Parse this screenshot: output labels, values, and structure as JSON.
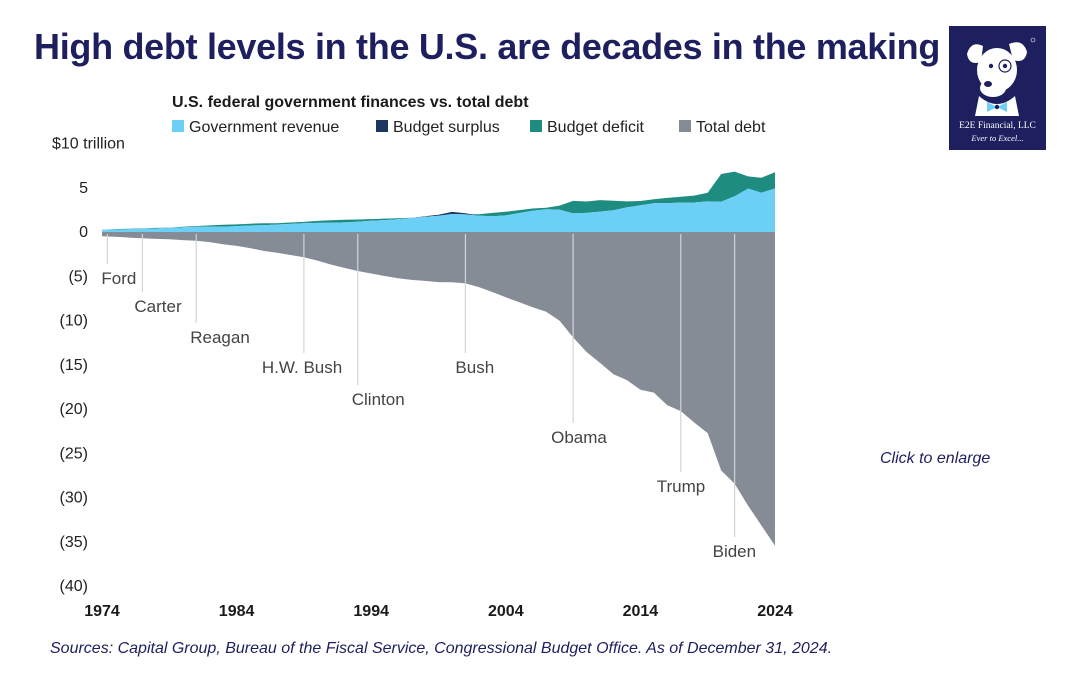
{
  "page": {
    "title": "High debt levels in the U.S. are decades in the making",
    "click_label": "Click to enlarge",
    "sources": "Sources: Capital Group, Bureau of the Fiscal Service, Congressional Budget Office. As of December 31, 2024."
  },
  "logo": {
    "brand": "E2E Financial, LLC",
    "tagline": "Ever to Excel..."
  },
  "colors": {
    "title": "#1d1f5e",
    "revenue": "#6ccff6",
    "surplus": "#1b3760",
    "deficit": "#1e8c80",
    "debt": "#858c95",
    "axis_text": "#222222"
  },
  "chart_data": {
    "type": "area",
    "title": "U.S. federal government finances vs. total debt",
    "y_unit_label": "$10 trillion",
    "ylim": [
      -40,
      10
    ],
    "xlim": [
      1974,
      2024
    ],
    "y_ticks": [
      10,
      5,
      0,
      -5,
      -10,
      -15,
      -20,
      -25,
      -30,
      -35,
      -40
    ],
    "y_tick_labels": [
      "$10 trillion",
      "5",
      "0",
      "(5)",
      "(10)",
      "(15)",
      "(20)",
      "(25)",
      "(30)",
      "(35)",
      "(40)"
    ],
    "x_ticks": [
      1974,
      1984,
      1994,
      2004,
      2014,
      2024
    ],
    "x_tick_labels": [
      "1974",
      "1984",
      "1994",
      "2004",
      "2014",
      "2024"
    ],
    "legend": [
      "Government revenue",
      "Budget surplus",
      "Budget deficit",
      "Total debt"
    ],
    "x": [
      1974,
      1975,
      1976,
      1977,
      1978,
      1979,
      1980,
      1981,
      1982,
      1983,
      1984,
      1985,
      1986,
      1987,
      1988,
      1989,
      1990,
      1991,
      1992,
      1993,
      1994,
      1995,
      1996,
      1997,
      1998,
      1999,
      2000,
      2001,
      2002,
      2003,
      2004,
      2005,
      2006,
      2007,
      2008,
      2009,
      2010,
      2011,
      2012,
      2013,
      2014,
      2015,
      2016,
      2017,
      2018,
      2019,
      2020,
      2021,
      2022,
      2023,
      2024
    ],
    "series": [
      {
        "name": "Government revenue",
        "values": [
          0.26,
          0.28,
          0.3,
          0.36,
          0.4,
          0.46,
          0.52,
          0.6,
          0.62,
          0.6,
          0.67,
          0.73,
          0.77,
          0.85,
          0.91,
          0.99,
          1.03,
          1.05,
          1.09,
          1.15,
          1.26,
          1.35,
          1.45,
          1.58,
          1.72,
          1.83,
          2.03,
          1.99,
          1.85,
          1.78,
          1.88,
          2.15,
          2.41,
          2.57,
          2.52,
          2.1,
          2.16,
          2.3,
          2.45,
          2.78,
          3.02,
          3.25,
          3.27,
          3.32,
          3.33,
          3.46,
          3.42,
          4.05,
          4.9,
          4.44,
          4.92
        ]
      },
      {
        "name": "Budget surplus",
        "values": [
          0,
          0,
          0,
          0,
          0,
          0,
          0,
          0,
          0,
          0,
          0,
          0,
          0,
          0,
          0,
          0,
          0,
          0,
          0,
          0,
          0,
          0,
          0,
          0,
          0.07,
          0.13,
          0.24,
          0.13,
          0,
          0,
          0,
          0,
          0,
          0,
          0,
          0,
          0,
          0,
          0,
          0,
          0,
          0,
          0,
          0,
          0,
          0,
          0,
          0,
          0,
          0,
          0
        ]
      },
      {
        "name": "Budget deficit",
        "values": [
          0.01,
          0.05,
          0.07,
          0.05,
          0.06,
          0.04,
          0.07,
          0.08,
          0.13,
          0.21,
          0.19,
          0.21,
          0.22,
          0.15,
          0.16,
          0.15,
          0.22,
          0.27,
          0.29,
          0.26,
          0.2,
          0.16,
          0.11,
          0.02,
          0,
          0,
          0,
          0,
          0.16,
          0.38,
          0.41,
          0.32,
          0.25,
          0.16,
          0.46,
          1.41,
          1.29,
          1.3,
          1.09,
          0.68,
          0.48,
          0.44,
          0.58,
          0.67,
          0.78,
          0.98,
          3.13,
          2.78,
          1.38,
          1.7,
          1.83
        ]
      },
      {
        "name": "Total debt",
        "values": [
          -0.48,
          -0.54,
          -0.63,
          -0.71,
          -0.78,
          -0.83,
          -0.91,
          -1.0,
          -1.14,
          -1.38,
          -1.57,
          -1.82,
          -2.13,
          -2.35,
          -2.6,
          -2.86,
          -3.23,
          -3.67,
          -4.06,
          -4.41,
          -4.69,
          -4.97,
          -5.22,
          -5.41,
          -5.53,
          -5.66,
          -5.67,
          -5.81,
          -6.23,
          -6.78,
          -7.38,
          -7.93,
          -8.51,
          -9.01,
          -10.02,
          -11.91,
          -13.56,
          -14.79,
          -16.07,
          -16.74,
          -17.82,
          -18.15,
          -19.57,
          -20.24,
          -21.52,
          -22.72,
          -26.95,
          -28.43,
          -30.93,
          -33.17,
          -35.46
        ]
      }
    ],
    "annotations": [
      {
        "label": "Ford",
        "year": 1974.4
      },
      {
        "label": "Carter",
        "year": 1977
      },
      {
        "label": "Reagan",
        "year": 1981
      },
      {
        "label": "H.W. Bush",
        "year": 1989
      },
      {
        "label": "Clinton",
        "year": 1993
      },
      {
        "label": "Bush",
        "year": 2001
      },
      {
        "label": "Obama",
        "year": 2009
      },
      {
        "label": "Trump",
        "year": 2017
      },
      {
        "label": "Biden",
        "year": 2021
      }
    ]
  }
}
